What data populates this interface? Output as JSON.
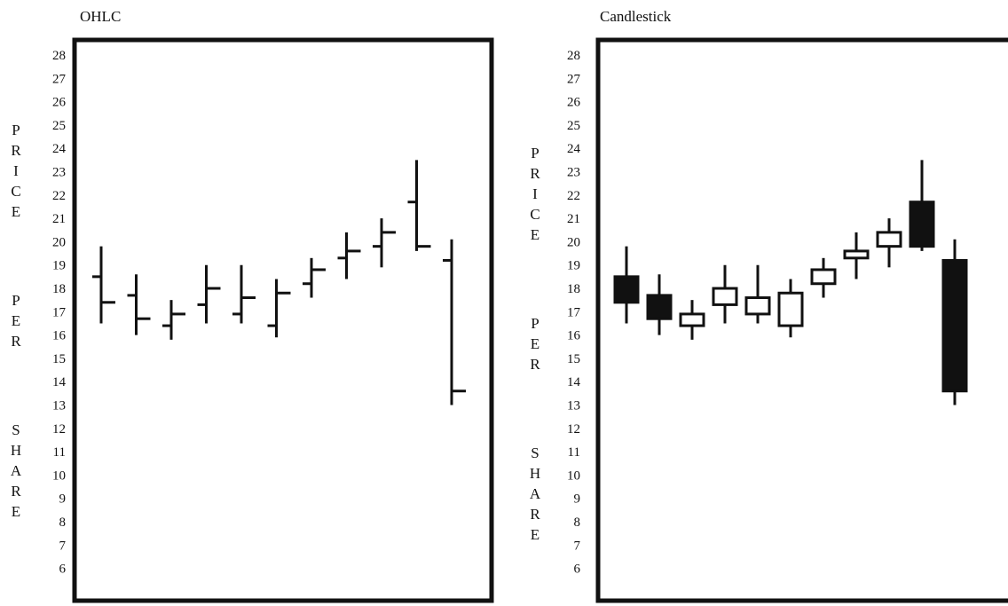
{
  "chart_data": [
    {
      "type": "ohlc",
      "title": "OHLC",
      "ylabel": "PRICE PER SHARE",
      "ylim": [
        6,
        28
      ],
      "yticks": [
        "28",
        "27",
        "26",
        "25",
        "24",
        "23",
        "22",
        "21",
        "20",
        "19",
        "18",
        "17",
        "16",
        "15",
        "14",
        "13",
        "12",
        "11",
        "10",
        "9",
        "8",
        "7",
        "6"
      ],
      "grid": false,
      "legend": "none",
      "series": [
        {
          "o": 18.5,
          "h": 19.8,
          "l": 16.5,
          "c": 17.4
        },
        {
          "o": 17.7,
          "h": 18.6,
          "l": 16.0,
          "c": 16.7
        },
        {
          "o": 16.4,
          "h": 17.5,
          "l": 15.8,
          "c": 16.9
        },
        {
          "o": 17.3,
          "h": 19.0,
          "l": 16.5,
          "c": 18.0
        },
        {
          "o": 16.9,
          "h": 19.0,
          "l": 16.5,
          "c": 17.6
        },
        {
          "o": 16.4,
          "h": 18.4,
          "l": 15.9,
          "c": 17.8
        },
        {
          "o": 18.2,
          "h": 19.3,
          "l": 17.6,
          "c": 18.8
        },
        {
          "o": 19.3,
          "h": 20.4,
          "l": 18.4,
          "c": 19.6
        },
        {
          "o": 19.8,
          "h": 21.0,
          "l": 18.9,
          "c": 20.4
        },
        {
          "o": 21.7,
          "h": 23.5,
          "l": 19.6,
          "c": 19.8
        },
        {
          "o": 19.2,
          "h": 20.1,
          "l": 13.0,
          "c": 13.6
        }
      ]
    },
    {
      "type": "candlestick",
      "title": "Candlestick",
      "ylabel": "PRICE PER SHARE",
      "ylim": [
        6,
        28
      ],
      "yticks": [
        "28",
        "27",
        "26",
        "25",
        "24",
        "23",
        "22",
        "21",
        "20",
        "19",
        "18",
        "17",
        "16",
        "15",
        "14",
        "13",
        "12",
        "11",
        "10",
        "9",
        "8",
        "7",
        "6"
      ],
      "grid": false,
      "legend": "none",
      "colors": {
        "down": "#111111",
        "up": "#ffffff",
        "outline": "#111111"
      },
      "series": [
        {
          "o": 18.5,
          "h": 19.8,
          "l": 16.5,
          "c": 17.4
        },
        {
          "o": 17.7,
          "h": 18.6,
          "l": 16.0,
          "c": 16.7
        },
        {
          "o": 16.4,
          "h": 17.5,
          "l": 15.8,
          "c": 16.9
        },
        {
          "o": 17.3,
          "h": 19.0,
          "l": 16.5,
          "c": 18.0
        },
        {
          "o": 16.9,
          "h": 19.0,
          "l": 16.5,
          "c": 17.6
        },
        {
          "o": 16.4,
          "h": 18.4,
          "l": 15.9,
          "c": 17.8
        },
        {
          "o": 18.2,
          "h": 19.3,
          "l": 17.6,
          "c": 18.8
        },
        {
          "o": 19.3,
          "h": 20.4,
          "l": 18.4,
          "c": 19.6
        },
        {
          "o": 19.8,
          "h": 21.0,
          "l": 18.9,
          "c": 20.4
        },
        {
          "o": 21.7,
          "h": 23.5,
          "l": 19.6,
          "c": 19.8
        },
        {
          "o": 19.2,
          "h": 20.1,
          "l": 13.0,
          "c": 13.6
        }
      ]
    }
  ]
}
